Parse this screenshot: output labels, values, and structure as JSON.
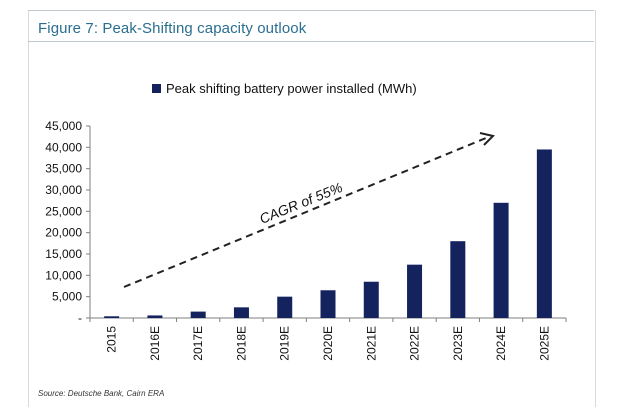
{
  "figure": {
    "title": "Figure 7: Peak-Shifting capacity outlook",
    "source": "Source: Deutsche Bank, Cairn ERA"
  },
  "chart_data": {
    "type": "bar",
    "title": "",
    "xlabel": "",
    "ylabel": "",
    "ylim": [
      0,
      45000
    ],
    "grid": false,
    "legend_position": "top",
    "categories": [
      "2015",
      "2016E",
      "2017E",
      "2018E",
      "2019E",
      "2020E",
      "2021E",
      "2022E",
      "2023E",
      "2024E",
      "2025E"
    ],
    "y_ticks": [
      0,
      5000,
      10000,
      15000,
      20000,
      25000,
      30000,
      35000,
      40000,
      45000
    ],
    "y_tick_labels": [
      "-",
      "5,000",
      "10,000",
      "15,000",
      "20,000",
      "25,000",
      "30,000",
      "35,000",
      "40,000",
      "45,000"
    ],
    "series": [
      {
        "name": "Peak shifting battery power installed (MWh)",
        "color": "#14235e",
        "values": [
          400,
          600,
          1500,
          2500,
          5000,
          6500,
          8500,
          12500,
          18000,
          27000,
          39500
        ]
      }
    ],
    "annotation": {
      "text": "CAGR of 55%",
      "style": "dashed arrow"
    }
  }
}
